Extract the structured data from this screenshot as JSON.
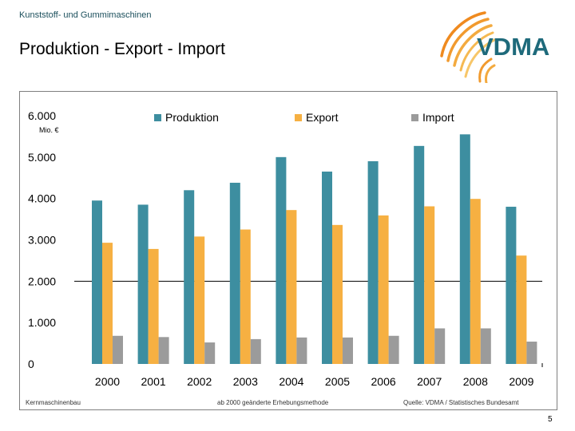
{
  "header": {
    "subtitle": "Kunststoff- und Gummimaschinen",
    "title": "Produktion - Export - Import",
    "logo_text": "VDMA",
    "brand_color_teal": "#1e6a7b",
    "brand_color_orange": "#ef8a1f"
  },
  "chart_data": {
    "type": "bar",
    "unit_label": "Mio. €",
    "categories": [
      "2000",
      "2001",
      "2002",
      "2003",
      "2004",
      "2005",
      "2006",
      "2007",
      "2008",
      "2009"
    ],
    "series": [
      {
        "name": "Produktion",
        "color": "#3d8ea0",
        "values": [
          3950,
          3850,
          4200,
          4380,
          5000,
          4650,
          4900,
          5270,
          5550,
          3800
        ]
      },
      {
        "name": "Export",
        "color": "#f6b042",
        "values": [
          2930,
          2780,
          3080,
          3250,
          3720,
          3360,
          3590,
          3810,
          3990,
          2620
        ]
      },
      {
        "name": "Import",
        "color": "#9b9b9b",
        "values": [
          680,
          650,
          520,
          600,
          640,
          640,
          680,
          860,
          860,
          540
        ]
      }
    ],
    "y_ticks": [
      {
        "value": 0,
        "label": "0"
      },
      {
        "value": 1000,
        "label": "1.000"
      },
      {
        "value": 2000,
        "label": "2.000"
      },
      {
        "value": 3000,
        "label": "3.000"
      },
      {
        "value": 4000,
        "label": "4.000"
      },
      {
        "value": 5000,
        "label": "5.000"
      },
      {
        "value": 6000,
        "label": "6.000"
      }
    ],
    "ylim": [
      0,
      6000
    ],
    "reference_line": 2000,
    "legend_position": "top",
    "title": "",
    "xlabel": "",
    "ylabel": "Mio. €"
  },
  "footer": {
    "left_note": "Kernmaschinenbau",
    "center_note": "ab 2000 geänderte Erhebungsmethode",
    "right_note": "Quelle: VDMA / Statistisches Bundesamt",
    "page_number": "5"
  }
}
